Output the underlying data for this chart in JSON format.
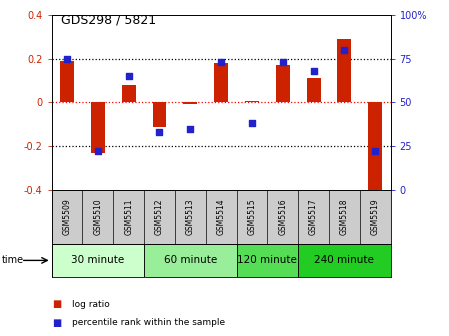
{
  "title": "GDS298 / 5821",
  "samples": [
    "GSM5509",
    "GSM5510",
    "GSM5511",
    "GSM5512",
    "GSM5513",
    "GSM5514",
    "GSM5515",
    "GSM5516",
    "GSM5517",
    "GSM5518",
    "GSM5519"
  ],
  "log_ratio": [
    0.19,
    -0.23,
    0.08,
    -0.11,
    -0.005,
    0.18,
    0.005,
    0.17,
    0.11,
    0.29,
    -0.4
  ],
  "percentile": [
    75,
    22,
    65,
    33,
    35,
    73,
    38,
    73,
    68,
    80,
    22
  ],
  "bar_color": "#cc2200",
  "dot_color": "#2222cc",
  "ylim_left": [
    -0.4,
    0.4
  ],
  "ylim_right": [
    0,
    100
  ],
  "yticks_left": [
    -0.4,
    -0.2,
    0.0,
    0.2,
    0.4
  ],
  "yticks_right": [
    0,
    25,
    50,
    75,
    100
  ],
  "ytick_labels_right": [
    "0",
    "25",
    "50",
    "75",
    "100%"
  ],
  "ytick_labels_left": [
    "-0.4",
    "-0.2",
    "0",
    "0.2",
    "0.4"
  ],
  "hlines_dotted": [
    -0.2,
    0.2
  ],
  "hline_red": 0.0,
  "groups": [
    {
      "label": "30 minute",
      "indices": [
        0,
        1,
        2
      ],
      "color": "#ccffcc"
    },
    {
      "label": "60 minute",
      "indices": [
        3,
        4,
        5
      ],
      "color": "#99ee99"
    },
    {
      "label": "120 minute",
      "indices": [
        6,
        7
      ],
      "color": "#55dd55"
    },
    {
      "label": "240 minute",
      "indices": [
        8,
        9,
        10
      ],
      "color": "#22cc22"
    }
  ],
  "time_label": "time",
  "legend_log": "log ratio",
  "legend_pct": "percentile rank within the sample",
  "bg_color": "#ffffff",
  "sample_bg": "#cccccc",
  "bar_width": 0.45,
  "dot_size": 18,
  "title_fontsize": 9,
  "tick_fontsize": 7,
  "sample_fontsize": 5.5,
  "group_fontsize": 7.5,
  "legend_fontsize": 6.5
}
